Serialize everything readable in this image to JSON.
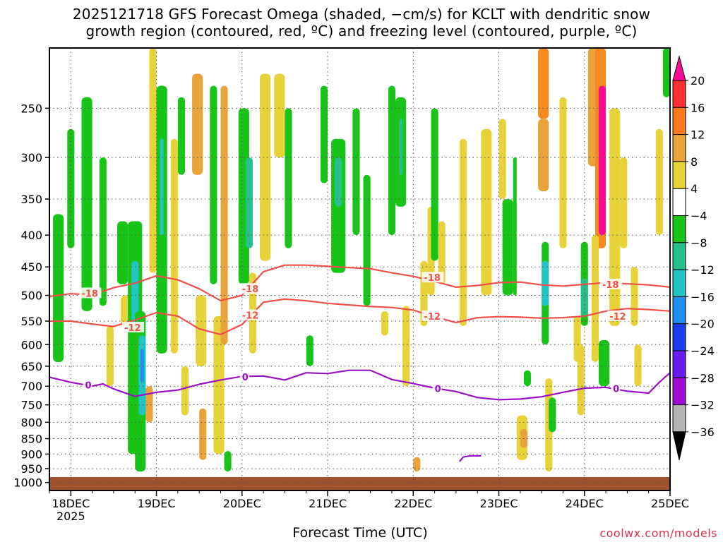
{
  "chart_data": {
    "type": "heatmap",
    "title": "2025121718 GFS Forecast Omega (shaded, −cm/s) for KCLT with dendritic snow",
    "subtitle": "growth region (contoured, red, ºC) and freezing level (contoured, purple, ºC)",
    "xlabel": "Forecast Time (UTC)",
    "ylabel": "",
    "x_ticks": [
      "18DEC",
      "19DEC",
      "20DEC",
      "21DEC",
      "22DEC",
      "23DEC",
      "24DEC",
      "25DEC"
    ],
    "x_year": "2025",
    "x_range_hours": [
      -6,
      168
    ],
    "y_ticks": [
      250,
      300,
      350,
      400,
      450,
      500,
      550,
      600,
      650,
      700,
      750,
      800,
      850,
      900,
      950,
      1000
    ],
    "y_range_hpa": [
      200,
      1030
    ],
    "colorbar": {
      "labels": [
        "20",
        "16",
        "12",
        "8",
        "4",
        "−4",
        "−8",
        "−12",
        "−16",
        "−20",
        "−24",
        "−28",
        "−32",
        "−36"
      ],
      "colors": [
        "#ff0a96",
        "#ff3030",
        "#ff7a1f",
        "#e8a43a",
        "#e8d23a",
        "#ffffff",
        "#19c419",
        "#27c08a",
        "#23c4c4",
        "#1c8ff0",
        "#1c3df0",
        "#6a1cf0",
        "#a00ad2",
        "#b4b4b4"
      ]
    },
    "contours": [
      {
        "label": "-18",
        "color": "#f0504a",
        "points": [
          [
            -6,
            502
          ],
          [
            0,
            497
          ],
          [
            6,
            499
          ],
          [
            12,
            486
          ],
          [
            18,
            478
          ],
          [
            24,
            465
          ],
          [
            30,
            472
          ],
          [
            36,
            488
          ],
          [
            42,
            510
          ],
          [
            48,
            500
          ],
          [
            54,
            458
          ],
          [
            60,
            447
          ],
          [
            66,
            447
          ],
          [
            72,
            449
          ],
          [
            78,
            451
          ],
          [
            84,
            453
          ],
          [
            90,
            460
          ],
          [
            96,
            466
          ],
          [
            102,
            475
          ],
          [
            108,
            485
          ],
          [
            114,
            482
          ],
          [
            120,
            477
          ],
          [
            126,
            476
          ],
          [
            132,
            481
          ],
          [
            138,
            483
          ],
          [
            144,
            480
          ],
          [
            150,
            477
          ],
          [
            156,
            479
          ],
          [
            162,
            481
          ],
          [
            168,
            485
          ]
        ]
      },
      {
        "label": "-12",
        "color": "#f0504a",
        "points": [
          [
            -6,
            550
          ],
          [
            0,
            550
          ],
          [
            6,
            556
          ],
          [
            12,
            561
          ],
          [
            18,
            548
          ],
          [
            24,
            533
          ],
          [
            30,
            540
          ],
          [
            36,
            566
          ],
          [
            42,
            578
          ],
          [
            48,
            557
          ],
          [
            54,
            513
          ],
          [
            60,
            507
          ],
          [
            66,
            510
          ],
          [
            72,
            515
          ],
          [
            78,
            518
          ],
          [
            84,
            521
          ],
          [
            90,
            523
          ],
          [
            96,
            528
          ],
          [
            102,
            541
          ],
          [
            108,
            553
          ],
          [
            114,
            543
          ],
          [
            120,
            541
          ],
          [
            126,
            542
          ],
          [
            132,
            544
          ],
          [
            138,
            543
          ],
          [
            144,
            540
          ],
          [
            150,
            530
          ],
          [
            156,
            525
          ],
          [
            162,
            527
          ],
          [
            168,
            530
          ]
        ]
      },
      {
        "label": "0",
        "color": "#9a11c4",
        "points": [
          [
            -6,
            677
          ],
          [
            0,
            690
          ],
          [
            6,
            700
          ],
          [
            9,
            694
          ],
          [
            12,
            707
          ],
          [
            18,
            727
          ],
          [
            24,
            716
          ],
          [
            30,
            710
          ],
          [
            36,
            695
          ],
          [
            42,
            684
          ],
          [
            48,
            675
          ],
          [
            54,
            674
          ],
          [
            60,
            684
          ],
          [
            66,
            666
          ],
          [
            72,
            668
          ],
          [
            78,
            660
          ],
          [
            84,
            660
          ],
          [
            90,
            683
          ],
          [
            96,
            693
          ],
          [
            102,
            705
          ],
          [
            108,
            714
          ],
          [
            114,
            730
          ],
          [
            120,
            736
          ],
          [
            126,
            734
          ],
          [
            132,
            728
          ],
          [
            138,
            716
          ],
          [
            144,
            705
          ],
          [
            150,
            703
          ],
          [
            156,
            713
          ],
          [
            162,
            718
          ],
          [
            165,
            690
          ],
          [
            168,
            666
          ]
        ]
      }
    ],
    "contour_labels": [
      {
        "text": "-18",
        "x": 3,
        "p": 496
      },
      {
        "text": "-18",
        "x": 48,
        "p": 488
      },
      {
        "text": "-18",
        "x": 99,
        "p": 468
      },
      {
        "text": "-18",
        "x": 149,
        "p": 480
      },
      {
        "text": "-12",
        "x": 15,
        "p": 563
      },
      {
        "text": "-12",
        "x": 48,
        "p": 538
      },
      {
        "text": "-12",
        "x": 99,
        "p": 540
      },
      {
        "text": "-12",
        "x": 151,
        "p": 540
      },
      {
        "text": "0",
        "x": 4,
        "p": 697
      },
      {
        "text": "0",
        "x": 48,
        "p": 676
      },
      {
        "text": "0",
        "x": 102,
        "p": 706
      },
      {
        "text": "0",
        "x": 152,
        "p": 706
      }
    ],
    "small_contour_0": [
      [
        109,
        925
      ],
      [
        110,
        910
      ],
      [
        112,
        906
      ],
      [
        115,
        906
      ]
    ],
    "shaded_regions": [
      {
        "t1": -5,
        "t2": -2,
        "p1": 370,
        "p2": 640,
        "level": -8
      },
      {
        "t1": -1,
        "t2": 1,
        "p1": 270,
        "p2": 420,
        "level": -8
      },
      {
        "t1": 3,
        "t2": 6,
        "p1": 240,
        "p2": 530,
        "level": -8
      },
      {
        "t1": 8,
        "t2": 10,
        "p1": 300,
        "p2": 520,
        "level": -8
      },
      {
        "t1": 10,
        "t2": 12,
        "p1": 560,
        "p2": 700,
        "level": 4
      },
      {
        "t1": 13,
        "t2": 16,
        "p1": 380,
        "p2": 480,
        "level": -8
      },
      {
        "t1": 14,
        "t2": 17,
        "p1": 500,
        "p2": 560,
        "level": 4
      },
      {
        "t1": 16,
        "t2": 20,
        "p1": 380,
        "p2": 900,
        "level": -8
      },
      {
        "t1": 17,
        "t2": 19,
        "p1": 440,
        "p2": 560,
        "level": -16
      },
      {
        "t1": 18,
        "t2": 21,
        "p1": 530,
        "p2": 960,
        "level": -8
      },
      {
        "t1": 19,
        "t2": 21,
        "p1": 580,
        "p2": 780,
        "level": -16
      },
      {
        "t1": 19.5,
        "t2": 20.5,
        "p1": 610,
        "p2": 690,
        "level": -20
      },
      {
        "t1": 21,
        "t2": 23,
        "p1": 700,
        "p2": 800,
        "level": 8
      },
      {
        "t1": 22,
        "t2": 24,
        "p1": 200,
        "p2": 460,
        "level": 4
      },
      {
        "t1": 24,
        "t2": 27,
        "p1": 230,
        "p2": 620,
        "level": -8
      },
      {
        "t1": 25,
        "t2": 26,
        "p1": 280,
        "p2": 400,
        "level": -16
      },
      {
        "t1": 28,
        "t2": 30,
        "p1": 280,
        "p2": 620,
        "level": 4
      },
      {
        "t1": 30,
        "t2": 32,
        "p1": 240,
        "p2": 320,
        "level": -8
      },
      {
        "t1": 31,
        "t2": 33,
        "p1": 650,
        "p2": 780,
        "level": 4
      },
      {
        "t1": 34,
        "t2": 37,
        "p1": 220,
        "p2": 320,
        "level": 8
      },
      {
        "t1": 35,
        "t2": 38,
        "p1": 500,
        "p2": 650,
        "level": 4
      },
      {
        "t1": 36,
        "t2": 38,
        "p1": 760,
        "p2": 920,
        "level": 8
      },
      {
        "t1": 39,
        "t2": 41,
        "p1": 230,
        "p2": 480,
        "level": -8
      },
      {
        "t1": 40,
        "t2": 43,
        "p1": 540,
        "p2": 900,
        "level": 4
      },
      {
        "t1": 42,
        "t2": 44,
        "p1": 230,
        "p2": 600,
        "level": 8
      },
      {
        "t1": 43,
        "t2": 45,
        "p1": 890,
        "p2": 960,
        "level": -8
      },
      {
        "t1": 47,
        "t2": 50,
        "p1": 250,
        "p2": 480,
        "level": -8
      },
      {
        "t1": 49,
        "t2": 51,
        "p1": 300,
        "p2": 420,
        "level": -12
      },
      {
        "t1": 50,
        "t2": 52,
        "p1": 460,
        "p2": 620,
        "level": 4
      },
      {
        "t1": 53,
        "t2": 56,
        "p1": 220,
        "p2": 440,
        "level": 4
      },
      {
        "t1": 57,
        "t2": 60,
        "p1": 220,
        "p2": 300,
        "level": 4
      },
      {
        "t1": 60,
        "t2": 62,
        "p1": 250,
        "p2": 420,
        "level": -8
      },
      {
        "t1": 66,
        "t2": 68,
        "p1": 580,
        "p2": 650,
        "level": -8
      },
      {
        "t1": 70,
        "t2": 72,
        "p1": 230,
        "p2": 330,
        "level": -8
      },
      {
        "t1": 73,
        "t2": 77,
        "p1": 280,
        "p2": 460,
        "level": -8
      },
      {
        "t1": 74,
        "t2": 76,
        "p1": 300,
        "p2": 360,
        "level": -12
      },
      {
        "t1": 79,
        "t2": 81,
        "p1": 250,
        "p2": 400,
        "level": -8
      },
      {
        "t1": 82,
        "t2": 84,
        "p1": 320,
        "p2": 520,
        "level": -8
      },
      {
        "t1": 87,
        "t2": 89,
        "p1": 530,
        "p2": 580,
        "level": 4
      },
      {
        "t1": 89,
        "t2": 91,
        "p1": 230,
        "p2": 400,
        "level": -8
      },
      {
        "t1": 91,
        "t2": 94,
        "p1": 240,
        "p2": 360,
        "level": -8
      },
      {
        "t1": 92,
        "t2": 93,
        "p1": 260,
        "p2": 320,
        "level": -12
      },
      {
        "t1": 93,
        "t2": 95,
        "p1": 520,
        "p2": 700,
        "level": 4
      },
      {
        "t1": 96,
        "t2": 98,
        "p1": 910,
        "p2": 960,
        "level": 8
      },
      {
        "t1": 98,
        "t2": 100,
        "p1": 440,
        "p2": 560,
        "level": 4
      },
      {
        "t1": 100,
        "t2": 102,
        "p1": 360,
        "p2": 500,
        "level": 4
      },
      {
        "t1": 101,
        "t2": 103,
        "p1": 250,
        "p2": 440,
        "level": -8
      },
      {
        "t1": 103,
        "t2": 105,
        "p1": 380,
        "p2": 480,
        "level": 4
      },
      {
        "t1": 109,
        "t2": 111,
        "p1": 280,
        "p2": 560,
        "level": 4
      },
      {
        "t1": 115,
        "t2": 118,
        "p1": 270,
        "p2": 500,
        "level": 4
      },
      {
        "t1": 120,
        "t2": 122,
        "p1": 260,
        "p2": 350,
        "level": 4
      },
      {
        "t1": 121,
        "t2": 124,
        "p1": 350,
        "p2": 500,
        "level": -8
      },
      {
        "t1": 124,
        "t2": 125,
        "p1": 300,
        "p2": 500,
        "level": -8
      },
      {
        "t1": 125,
        "t2": 128,
        "p1": 780,
        "p2": 920,
        "level": 4
      },
      {
        "t1": 126,
        "t2": 128,
        "p1": 820,
        "p2": 880,
        "level": 8
      },
      {
        "t1": 127,
        "t2": 129,
        "p1": 660,
        "p2": 700,
        "level": -8
      },
      {
        "t1": 131,
        "t2": 134,
        "p1": 200,
        "p2": 260,
        "level": 12
      },
      {
        "t1": 131,
        "t2": 134,
        "p1": 260,
        "p2": 340,
        "level": 8
      },
      {
        "t1": 132,
        "t2": 134,
        "p1": 410,
        "p2": 600,
        "level": -8
      },
      {
        "t1": 132,
        "t2": 134,
        "p1": 440,
        "p2": 520,
        "level": -16
      },
      {
        "t1": 133,
        "t2": 135,
        "p1": 680,
        "p2": 960,
        "level": 4
      },
      {
        "t1": 134,
        "t2": 136,
        "p1": 730,
        "p2": 830,
        "level": -8
      },
      {
        "t1": 137,
        "t2": 139,
        "p1": 240,
        "p2": 420,
        "level": 4
      },
      {
        "t1": 141,
        "t2": 143,
        "p1": 540,
        "p2": 640,
        "level": 4
      },
      {
        "t1": 142,
        "t2": 144,
        "p1": 600,
        "p2": 780,
        "level": 4
      },
      {
        "t1": 143,
        "t2": 145,
        "p1": 410,
        "p2": 560,
        "level": -8
      },
      {
        "t1": 143,
        "t2": 145,
        "p1": 470,
        "p2": 540,
        "level": -12
      },
      {
        "t1": 145,
        "t2": 148,
        "p1": 200,
        "p2": 310,
        "level": 8
      },
      {
        "t1": 147,
        "t2": 150,
        "p1": 200,
        "p2": 420,
        "level": 12
      },
      {
        "t1": 148,
        "t2": 150,
        "p1": 230,
        "p2": 400,
        "level": 20
      },
      {
        "t1": 146,
        "t2": 148,
        "p1": 400,
        "p2": 640,
        "level": 4
      },
      {
        "t1": 148,
        "t2": 151,
        "p1": 590,
        "p2": 700,
        "level": -8
      },
      {
        "t1": 151,
        "t2": 154,
        "p1": 250,
        "p2": 560,
        "level": 4
      },
      {
        "t1": 154,
        "t2": 156,
        "p1": 300,
        "p2": 420,
        "level": 4
      },
      {
        "t1": 157,
        "t2": 159,
        "p1": 450,
        "p2": 560,
        "level": 4
      },
      {
        "t1": 158,
        "t2": 160,
        "p1": 600,
        "p2": 700,
        "level": 4
      },
      {
        "t1": 164,
        "t2": 166,
        "p1": 270,
        "p2": 400,
        "level": 4
      },
      {
        "t1": 166,
        "t2": 168,
        "p1": 200,
        "p2": 240,
        "level": -8
      }
    ],
    "grid": true
  }
}
